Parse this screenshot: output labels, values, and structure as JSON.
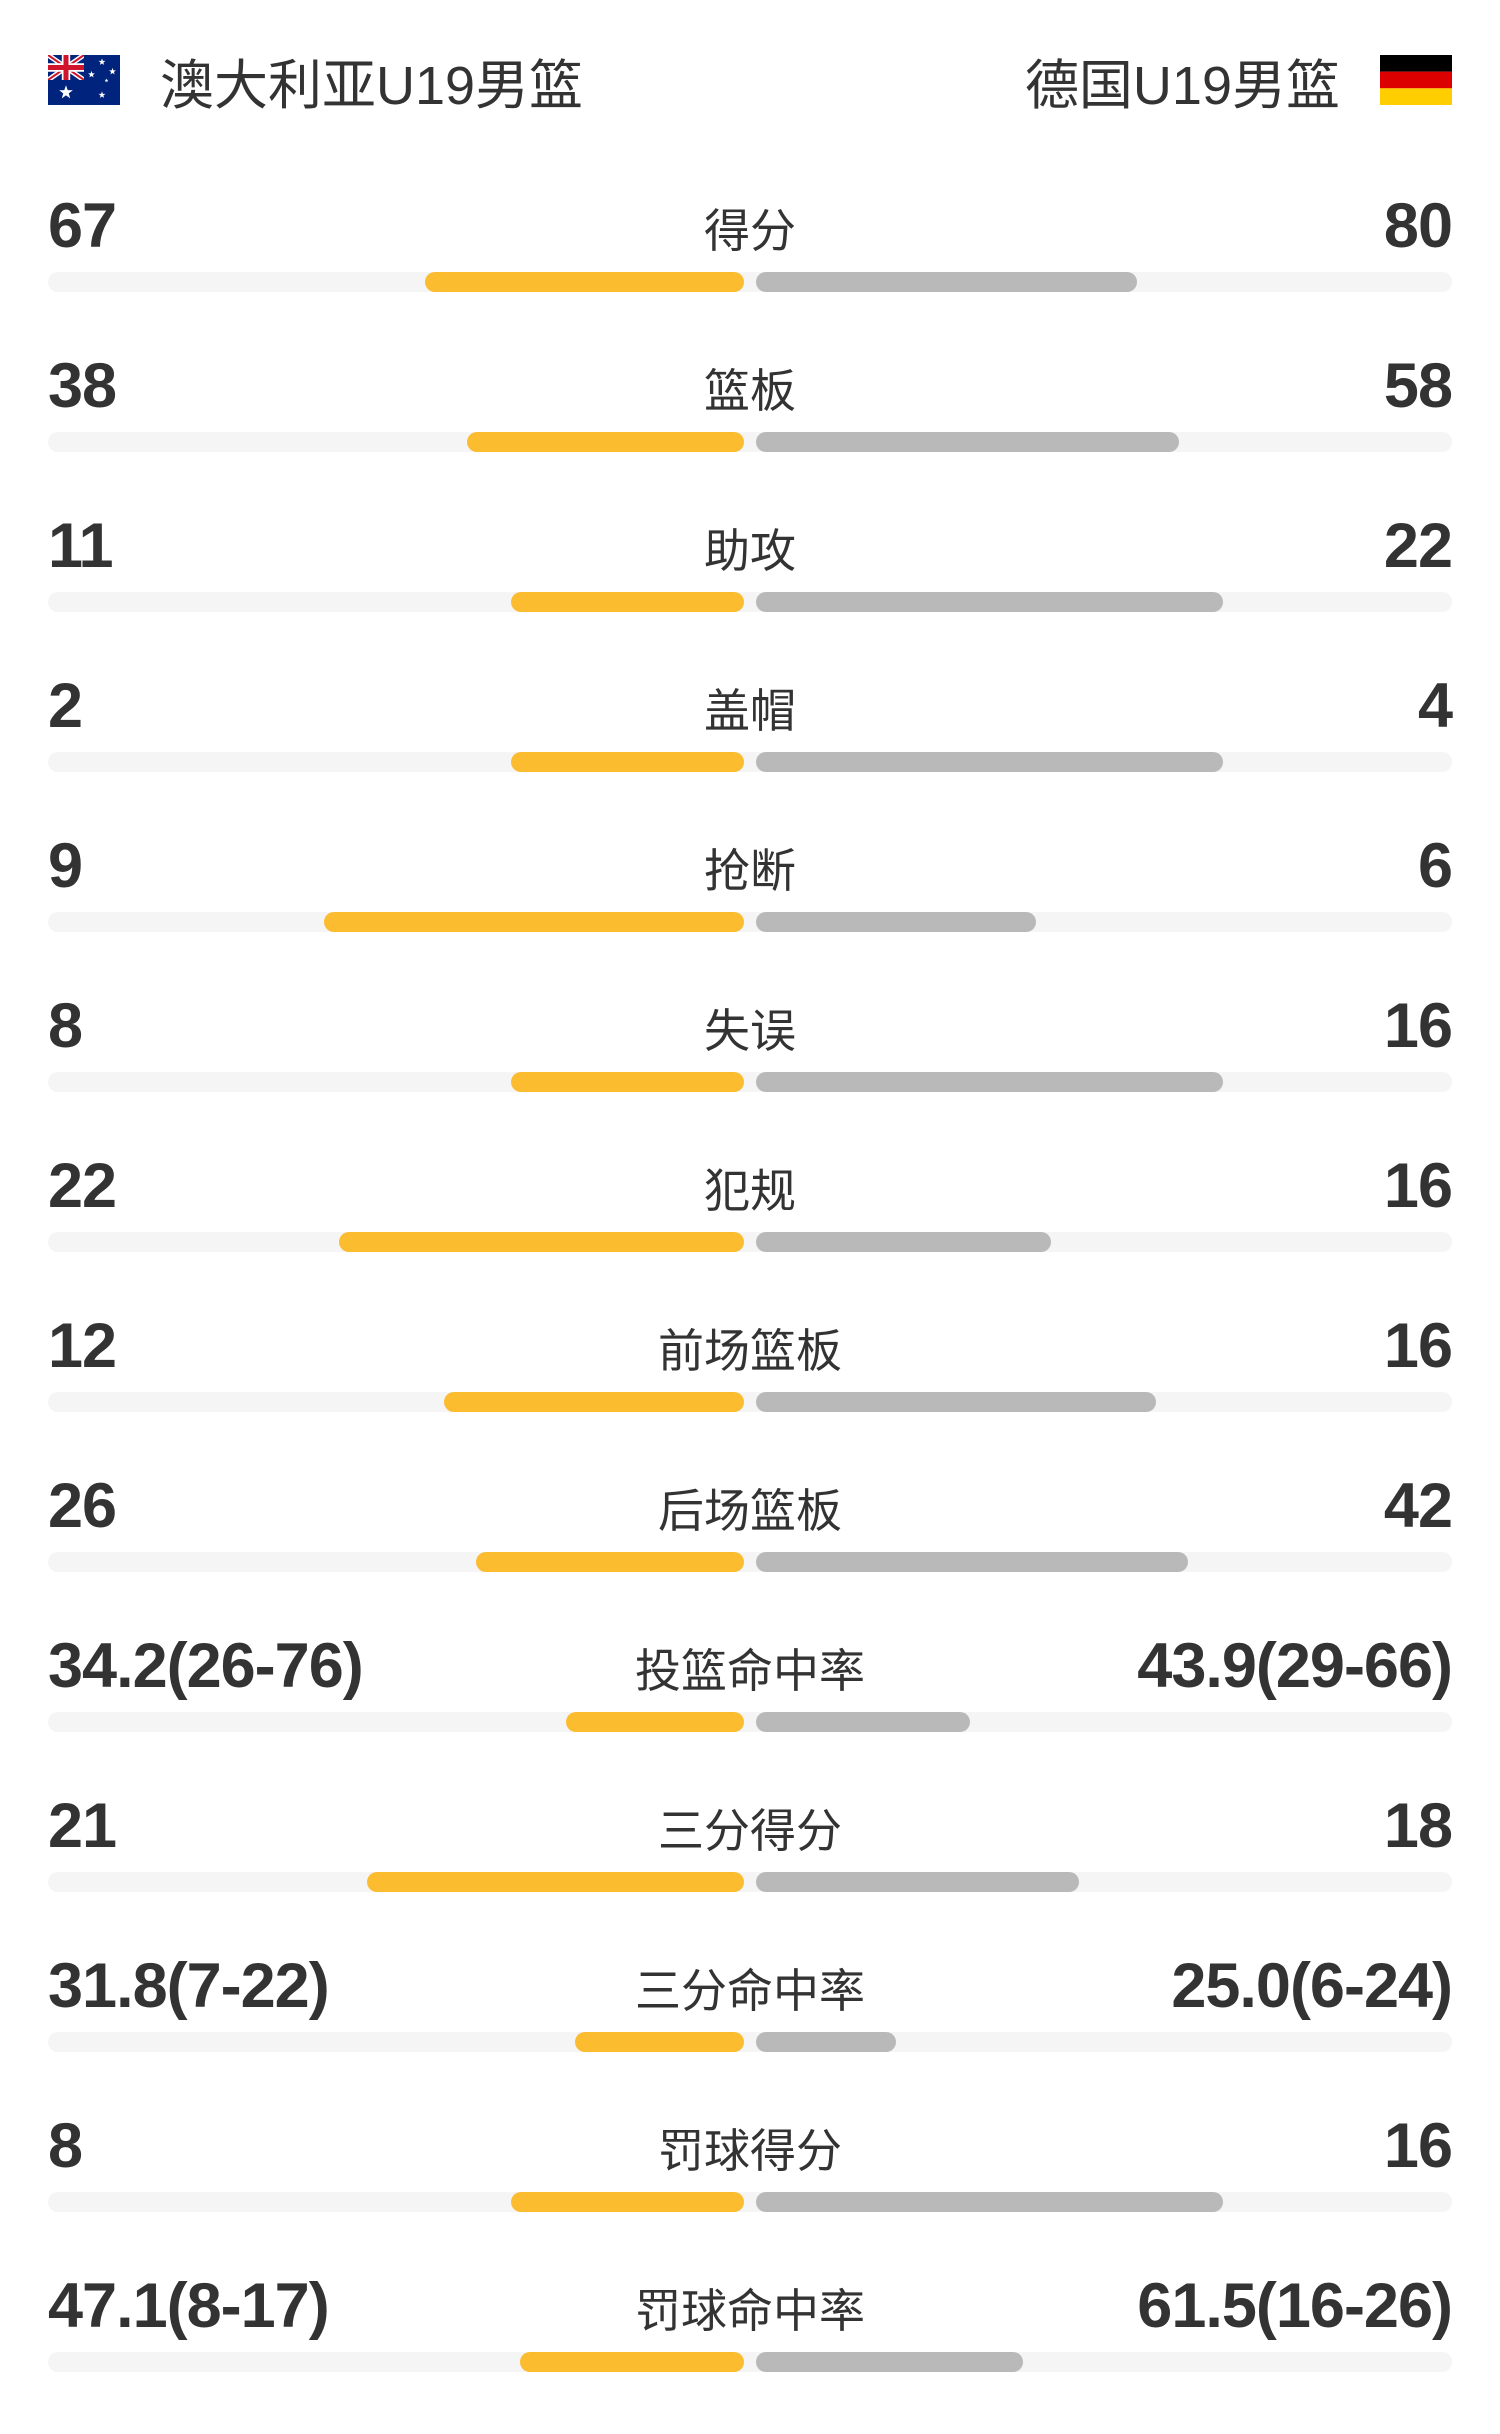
{
  "header": {
    "home_team": "澳大利亚U19男篮",
    "away_team": "德国U19男篮",
    "home_flag": "flag of Australia",
    "away_flag": "flag of Germany"
  },
  "colors": {
    "home_bar": "#FCBC2F",
    "away_bar": "#B9B9B9",
    "track": "#F5F5F6",
    "text": "#333333",
    "flag_au_blue": "#00247D",
    "flag_au_red": "#CF142B",
    "flag_de_black": "#000000",
    "flag_de_red": "#DD0000",
    "flag_de_gold": "#FFCE00"
  },
  "rows": [
    {
      "label": "得分",
      "home": "67",
      "away": "80",
      "home_bar": 319,
      "away_bar": 381
    },
    {
      "label": "篮板",
      "home": "38",
      "away": "58",
      "home_bar": 277,
      "away_bar": 423
    },
    {
      "label": "助攻",
      "home": "11",
      "away": "22",
      "home_bar": 233,
      "away_bar": 467
    },
    {
      "label": "盖帽",
      "home": "2",
      "away": "4",
      "home_bar": 233,
      "away_bar": 467
    },
    {
      "label": "抢断",
      "home": "9",
      "away": "6",
      "home_bar": 420,
      "away_bar": 280
    },
    {
      "label": "失误",
      "home": "8",
      "away": "16",
      "home_bar": 233,
      "away_bar": 467
    },
    {
      "label": "犯规",
      "home": "22",
      "away": "16",
      "home_bar": 405,
      "away_bar": 295
    },
    {
      "label": "前场篮板",
      "home": "12",
      "away": "16",
      "home_bar": 300,
      "away_bar": 400
    },
    {
      "label": "后场篮板",
      "home": "26",
      "away": "42",
      "home_bar": 268,
      "away_bar": 432
    },
    {
      "label": "投篮命中率",
      "home": "34.2(26-76)",
      "away": "43.9(29-66)",
      "home_bar": 178,
      "away_bar": 214
    },
    {
      "label": "三分得分",
      "home": "21",
      "away": "18",
      "home_bar": 377,
      "away_bar": 323
    },
    {
      "label": "三分命中率",
      "home": "31.8(7-22)",
      "away": "25.0(6-24)",
      "home_bar": 169,
      "away_bar": 140
    },
    {
      "label": "罚球得分",
      "home": "8",
      "away": "16",
      "home_bar": 233,
      "away_bar": 467
    },
    {
      "label": "罚球命中率",
      "home": "47.1(8-17)",
      "away": "61.5(16-26)",
      "home_bar": 224,
      "away_bar": 267
    }
  ],
  "chart_data": {
    "type": "bar",
    "orientation": "horizontal-paired",
    "title": "澳大利亚U19男篮 vs 德国U19男篮",
    "categories": [
      "得分",
      "篮板",
      "助攻",
      "盖帽",
      "抢断",
      "失误",
      "犯规",
      "前场篮板",
      "后场篮板",
      "投篮命中率",
      "三分得分",
      "三分命中率",
      "罚球得分",
      "罚球命中率"
    ],
    "series": [
      {
        "name": "澳大利亚U19男篮",
        "color": "#FCBC2F",
        "values": [
          67,
          38,
          11,
          2,
          9,
          8,
          22,
          12,
          26,
          "34.2(26-76)",
          21,
          "31.8(7-22)",
          8,
          "47.1(8-17)"
        ]
      },
      {
        "name": "德国U19男篮",
        "color": "#B9B9B9",
        "values": [
          80,
          58,
          22,
          4,
          6,
          16,
          16,
          16,
          42,
          "43.9(29-66)",
          18,
          "25.0(6-24)",
          16,
          "61.5(16-26)"
        ]
      }
    ],
    "legend_position": "top",
    "grid": false,
    "bar_scale": "bar width = value / (home+away) of row, percentage rows: makes / (makes+attempts)"
  }
}
